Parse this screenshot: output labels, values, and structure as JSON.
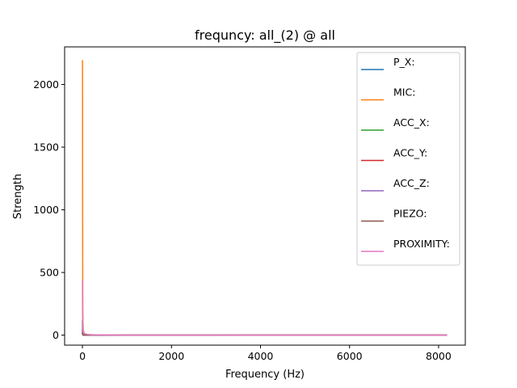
{
  "chart_data": {
    "type": "line",
    "title": "frequncy: all_(2) @ all",
    "xlabel": "Frequency (Hz)",
    "ylabel": "Strength",
    "xlim": [
      -400,
      8600
    ],
    "ylim": [
      -80,
      2300
    ],
    "xticks": [
      0,
      2000,
      4000,
      6000,
      8000
    ],
    "yticks": [
      0,
      500,
      1000,
      1500,
      2000
    ],
    "grid": false,
    "legend_position": "upper right",
    "series": [
      {
        "name": "P_X:",
        "color": "#1f77b4",
        "x": [
          0,
          1,
          2,
          4,
          8,
          15,
          30,
          60,
          100,
          200,
          1000,
          4000,
          8192
        ],
        "y": [
          120,
          90,
          40,
          20,
          10,
          6,
          3,
          2,
          1,
          0,
          0,
          0,
          0
        ]
      },
      {
        "name": "MIC:",
        "color": "#ff7f0e",
        "x": [
          0,
          1,
          2,
          3,
          4,
          6,
          8,
          12,
          20,
          40,
          80,
          150,
          300,
          1000,
          4000,
          8192
        ],
        "y": [
          2170,
          2190,
          2185,
          1900,
          1200,
          600,
          250,
          100,
          40,
          15,
          8,
          4,
          2,
          1,
          1,
          1
        ]
      },
      {
        "name": "ACC_X:",
        "color": "#2ca02c",
        "x": [
          0,
          1,
          2,
          4,
          8,
          15,
          30,
          60,
          100,
          200,
          1000,
          4000,
          8192
        ],
        "y": [
          30,
          25,
          15,
          8,
          4,
          2,
          1,
          0,
          0,
          0,
          0,
          0,
          0
        ]
      },
      {
        "name": "ACC_Y:",
        "color": "#d62728",
        "x": [
          0,
          1,
          2,
          4,
          8,
          15,
          30,
          60,
          100,
          200,
          1000,
          4000,
          8192
        ],
        "y": [
          25,
          20,
          12,
          6,
          3,
          1,
          1,
          0,
          0,
          0,
          0,
          0,
          0
        ]
      },
      {
        "name": "ACC_Z:",
        "color": "#9467bd",
        "x": [
          0,
          1,
          2,
          4,
          8,
          15,
          30,
          60,
          100,
          200,
          1000,
          4000,
          8192
        ],
        "y": [
          40,
          30,
          20,
          10,
          5,
          2,
          1,
          0,
          0,
          0,
          0,
          0,
          0
        ]
      },
      {
        "name": "PIEZO:",
        "color": "#8c564b",
        "x": [
          0,
          1,
          2,
          4,
          8,
          15,
          30,
          60,
          100,
          200,
          1000,
          4000,
          8192
        ],
        "y": [
          20,
          15,
          10,
          5,
          2,
          1,
          0,
          0,
          0,
          0,
          0,
          0,
          0
        ]
      },
      {
        "name": "PROXIMITY:",
        "color": "#e377c2",
        "x": [
          0,
          1,
          2,
          3,
          5,
          8,
          12,
          20,
          35,
          60,
          100,
          200,
          1000,
          4000,
          8192
        ],
        "y": [
          440,
          420,
          300,
          180,
          100,
          60,
          40,
          25,
          15,
          10,
          6,
          3,
          1,
          0,
          0
        ]
      }
    ]
  }
}
